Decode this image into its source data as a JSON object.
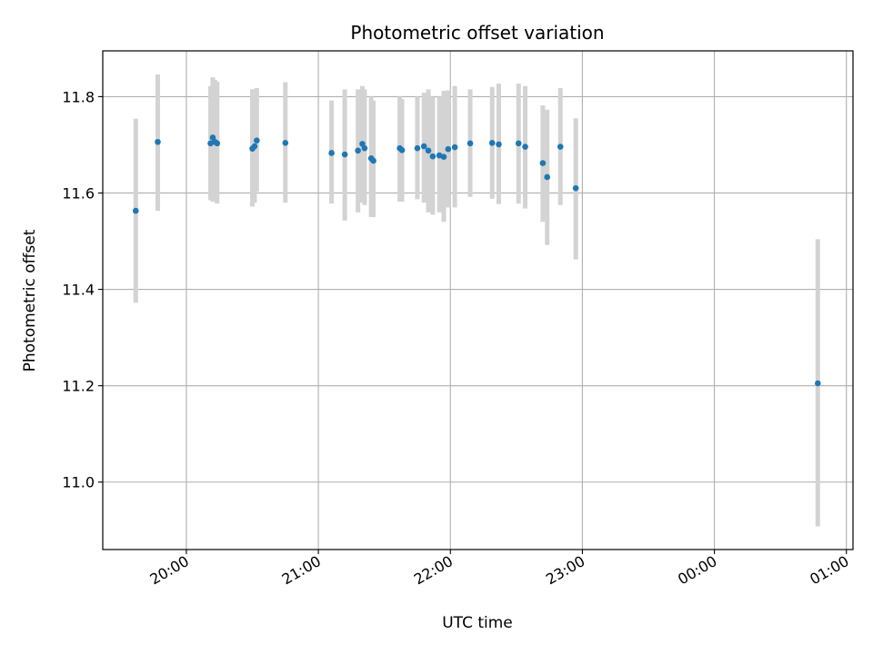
{
  "chart_data": {
    "type": "scatter",
    "title": "Photometric offset variation",
    "xlabel": "UTC time",
    "ylabel": "Photometric offset",
    "grid": true,
    "xaxis_kind": "time",
    "xlim": [
      "19:22",
      "01:03"
    ],
    "ylim": [
      10.86,
      11.895
    ],
    "x_ticks": [
      "20:00",
      "21:00",
      "22:00",
      "23:00",
      "00:00",
      "01:00"
    ],
    "y_ticks": [
      11.0,
      11.2,
      11.4,
      11.6,
      11.8
    ],
    "y_tick_labels": [
      "11.0",
      "11.2",
      "11.4",
      "11.6",
      "11.8"
    ],
    "colors": {
      "point": "#1f77b4",
      "error_bar": "#d3d3d3",
      "grid": "#b0b0b0"
    },
    "series": [
      {
        "points": [
          {
            "x": "19:37",
            "y": 11.563,
            "lo": 11.372,
            "hi": 11.754
          },
          {
            "x": "19:47",
            "y": 11.706,
            "lo": 11.563,
            "hi": 11.846
          },
          {
            "x": "20:11",
            "y": 11.703,
            "lo": 11.585,
            "hi": 11.822
          },
          {
            "x": "20:12",
            "y": 11.715,
            "lo": 11.582,
            "hi": 11.84
          },
          {
            "x": "20:13",
            "y": 11.706,
            "lo": 11.588,
            "hi": 11.835
          },
          {
            "x": "20:14",
            "y": 11.703,
            "lo": 11.578,
            "hi": 11.831
          },
          {
            "x": "20:30",
            "y": 11.692,
            "lo": 11.572,
            "hi": 11.815
          },
          {
            "x": "20:31",
            "y": 11.697,
            "lo": 11.58,
            "hi": 11.815
          },
          {
            "x": "20:32",
            "y": 11.709,
            "lo": 11.603,
            "hi": 11.818
          },
          {
            "x": "20:45",
            "y": 11.704,
            "lo": 11.58,
            "hi": 11.83
          },
          {
            "x": "21:06",
            "y": 11.683,
            "lo": 11.578,
            "hi": 11.792
          },
          {
            "x": "21:12",
            "y": 11.68,
            "lo": 11.543,
            "hi": 11.815
          },
          {
            "x": "21:18",
            "y": 11.688,
            "lo": 11.56,
            "hi": 11.815
          },
          {
            "x": "21:20",
            "y": 11.702,
            "lo": 11.58,
            "hi": 11.822
          },
          {
            "x": "21:21",
            "y": 11.693,
            "lo": 11.575,
            "hi": 11.815
          },
          {
            "x": "21:24",
            "y": 11.672,
            "lo": 11.55,
            "hi": 11.8
          },
          {
            "x": "21:25",
            "y": 11.667,
            "lo": 11.55,
            "hi": 11.792
          },
          {
            "x": "21:37",
            "y": 11.693,
            "lo": 11.582,
            "hi": 11.8
          },
          {
            "x": "21:38",
            "y": 11.689,
            "lo": 11.582,
            "hi": 11.795
          },
          {
            "x": "21:45",
            "y": 11.693,
            "lo": 11.587,
            "hi": 11.8
          },
          {
            "x": "21:48",
            "y": 11.697,
            "lo": 11.58,
            "hi": 11.808
          },
          {
            "x": "21:50",
            "y": 11.688,
            "lo": 11.56,
            "hi": 11.815
          },
          {
            "x": "21:52",
            "y": 11.676,
            "lo": 11.555,
            "hi": 11.8
          },
          {
            "x": "21:55",
            "y": 11.678,
            "lo": 11.56,
            "hi": 11.8
          },
          {
            "x": "21:57",
            "y": 11.675,
            "lo": 11.54,
            "hi": 11.812
          },
          {
            "x": "21:59",
            "y": 11.691,
            "lo": 11.57,
            "hi": 11.813
          },
          {
            "x": "22:02",
            "y": 11.695,
            "lo": 11.57,
            "hi": 11.822
          },
          {
            "x": "22:09",
            "y": 11.703,
            "lo": 11.592,
            "hi": 11.815
          },
          {
            "x": "22:19",
            "y": 11.704,
            "lo": 11.588,
            "hi": 11.82
          },
          {
            "x": "22:22",
            "y": 11.701,
            "lo": 11.577,
            "hi": 11.827
          },
          {
            "x": "22:31",
            "y": 11.703,
            "lo": 11.578,
            "hi": 11.827
          },
          {
            "x": "22:34",
            "y": 11.696,
            "lo": 11.568,
            "hi": 11.822
          },
          {
            "x": "22:42",
            "y": 11.662,
            "lo": 11.54,
            "hi": 11.782
          },
          {
            "x": "22:44",
            "y": 11.633,
            "lo": 11.492,
            "hi": 11.773
          },
          {
            "x": "22:50",
            "y": 11.696,
            "lo": 11.575,
            "hi": 11.818
          },
          {
            "x": "22:57",
            "y": 11.61,
            "lo": 11.462,
            "hi": 11.755
          },
          {
            "x": "00:47",
            "y": 11.205,
            "lo": 10.908,
            "hi": 11.504
          }
        ]
      }
    ]
  }
}
